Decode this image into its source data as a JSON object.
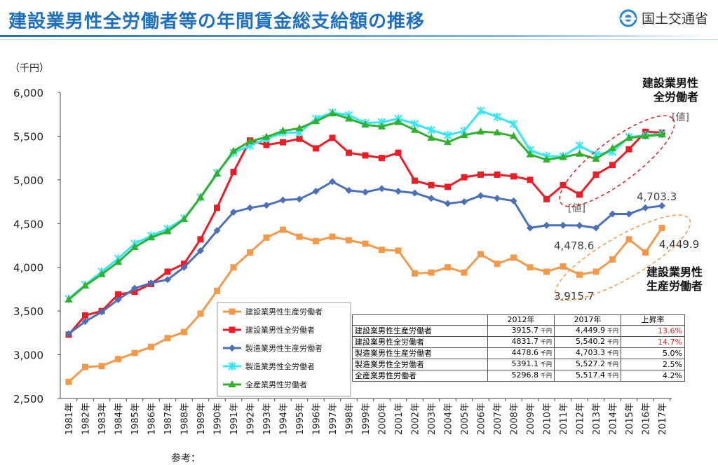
{
  "header": {
    "title": "建設業男性全労働者等の年間賃金総支給額の推移",
    "org_name": "国土交通省"
  },
  "chart_data": {
    "type": "line",
    "ylabel": "（千円）",
    "ylim": [
      2500,
      6000
    ],
    "yticks": [
      "2,500",
      "3,000",
      "3,500",
      "4,000",
      "4,500",
      "5,000",
      "5,500",
      "6,000"
    ],
    "categories": [
      "1981年",
      "1982年",
      "1983年",
      "1984年",
      "1985年",
      "1986年",
      "1987年",
      "1988年",
      "1989年",
      "1990年",
      "1991年",
      "1992年",
      "1993年",
      "1994年",
      "1995年",
      "1996年",
      "1997年",
      "1998年",
      "1999年",
      "2000年",
      "2001年",
      "2002年",
      "2003年",
      "2004年",
      "2005年",
      "2006年",
      "2007年",
      "2008年",
      "2009年",
      "2010年",
      "2011年",
      "2012年",
      "2013年",
      "2014年",
      "2015年",
      "2016年",
      "2017年"
    ],
    "series": [
      {
        "name": "建設業男性生産労働者",
        "color": "#f39a4a",
        "marker": "square",
        "values": [
          2690,
          2860,
          2870,
          2950,
          3020,
          3090,
          3190,
          3260,
          3470,
          3730,
          4000,
          4170,
          4340,
          4430,
          4350,
          4300,
          4350,
          4310,
          4270,
          4200,
          4190,
          3930,
          3940,
          4000,
          3940,
          4150,
          4040,
          4110,
          4000,
          3950,
          4010,
          3915.7,
          3950,
          4090,
          4320,
          4170,
          4449.9
        ]
      },
      {
        "name": "建設業男性全労働者",
        "color": "#ee1c25",
        "marker": "square",
        "values": [
          3230,
          3450,
          3500,
          3690,
          3720,
          3810,
          3950,
          4040,
          4320,
          4680,
          5090,
          5450,
          5400,
          5430,
          5470,
          5360,
          5480,
          5310,
          5280,
          5250,
          5310,
          4990,
          4940,
          4920,
          5030,
          5060,
          5060,
          5040,
          5000,
          4780,
          4940,
          4831.7,
          5060,
          5170,
          5350,
          5550,
          5540.2
        ]
      },
      {
        "name": "製造業男性生産労働者",
        "color": "#4a70b8",
        "marker": "diamond",
        "values": [
          3240,
          3380,
          3490,
          3630,
          3760,
          3820,
          3860,
          4000,
          4190,
          4420,
          4630,
          4680,
          4710,
          4770,
          4780,
          4870,
          4980,
          4880,
          4860,
          4900,
          4870,
          4850,
          4790,
          4730,
          4750,
          4820,
          4790,
          4760,
          4450,
          4480,
          4480,
          4478.6,
          4450,
          4610,
          4610,
          4680,
          4703.3
        ]
      },
      {
        "name": "製造業男性全労働者",
        "color": "#33e7f5",
        "marker": "star",
        "values": [
          3640,
          3800,
          3950,
          4100,
          4270,
          4360,
          4440,
          4560,
          4800,
          5080,
          5310,
          5390,
          5470,
          5540,
          5540,
          5700,
          5770,
          5740,
          5650,
          5660,
          5700,
          5640,
          5570,
          5510,
          5560,
          5790,
          5720,
          5640,
          5340,
          5270,
          5270,
          5391.1,
          5290,
          5320,
          5490,
          5510,
          5527.2
        ]
      },
      {
        "name": "全産業男性労働者",
        "color": "#31b02c",
        "marker": "triangle",
        "values": [
          3630,
          3790,
          3920,
          4060,
          4230,
          4340,
          4410,
          4550,
          4800,
          5070,
          5330,
          5440,
          5490,
          5560,
          5590,
          5670,
          5760,
          5700,
          5630,
          5610,
          5660,
          5570,
          5480,
          5430,
          5510,
          5550,
          5540,
          5500,
          5290,
          5230,
          5260,
          5296.8,
          5240,
          5360,
          5480,
          5500,
          5517.4
        ]
      }
    ],
    "annotations": {
      "label_const_all": "建設業男性\n全労働者",
      "label_const_prod": "建設業男性\n生産労働者",
      "val_placeholder_top": "[値]",
      "val_placeholder_mid": "[値]",
      "val_mfg_prod_2017": "4,703.3",
      "val_mfg_prod_2012": "4,478.6",
      "val_const_prod_2017": "4,449.9",
      "val_const_prod_2012": "3,915.7"
    },
    "legend_placement": "bottom-left"
  },
  "table": {
    "headers": [
      "",
      "2012年",
      "2017年",
      "上昇率"
    ],
    "unit": "千円",
    "rows": [
      {
        "name": "建設業男性生産労働者",
        "v2012": "3915.7",
        "v2017": "4,449.9",
        "rate": "13.6%",
        "highlight": true
      },
      {
        "name": "建設業男性全労働者",
        "v2012": "4831.7",
        "v2017": "5,540.2",
        "rate": "14.7%",
        "highlight": true
      },
      {
        "name": "製造業男性生産労働者",
        "v2012": "4478.6",
        "v2017": "4,703.3",
        "rate": "5.0%",
        "highlight": false
      },
      {
        "name": "製造業男性全労働者",
        "v2012": "5391.1",
        "v2017": "5,527.2",
        "rate": "2.5%",
        "highlight": false
      },
      {
        "name": "全産業男性労働者",
        "v2012": "5296.8",
        "v2017": "5,517.4",
        "rate": "4.2%",
        "highlight": false
      }
    ]
  },
  "footer": {
    "note": "参考："
  }
}
